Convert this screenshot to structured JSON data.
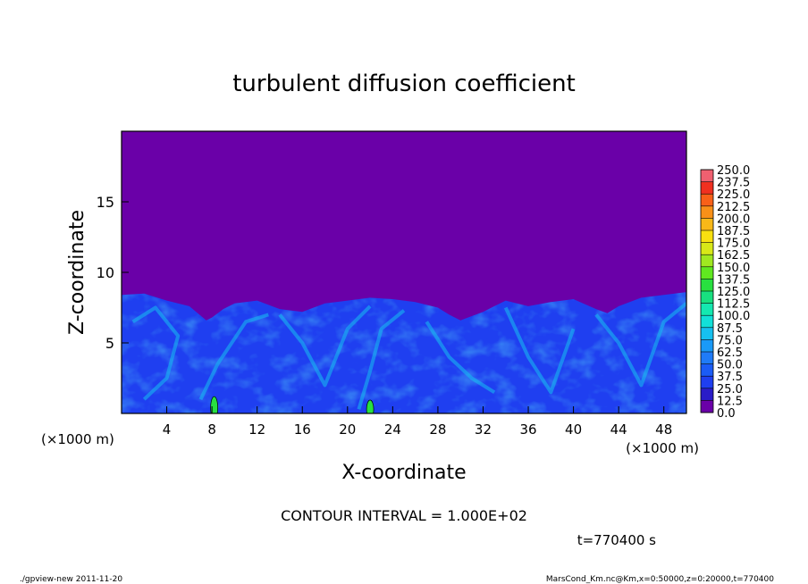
{
  "chart_data": {
    "type": "heatmap",
    "title": "turbulent diffusion coefficient",
    "xlabel": "X-coordinate",
    "ylabel": "Z-coordinate",
    "x_unit_left": "(×1000 m)",
    "x_unit_right": "(×1000 m)",
    "xlim": [
      0,
      50
    ],
    "ylim": [
      0,
      20
    ],
    "x_ticks": [
      4,
      8,
      12,
      16,
      20,
      24,
      28,
      32,
      36,
      40,
      44,
      48
    ],
    "y_ticks": [
      5,
      10,
      15
    ],
    "colorbar": {
      "levels": [
        0.0,
        12.5,
        25.0,
        37.5,
        50.0,
        62.5,
        75.0,
        87.5,
        100.0,
        112.5,
        125.0,
        137.5,
        150.0,
        162.5,
        175.0,
        187.5,
        200.0,
        212.5,
        225.0,
        237.5,
        250.0
      ],
      "labels": [
        "0.0",
        "12.5",
        "25.0",
        "37.5",
        "50.0",
        "62.5",
        "75.0",
        "87.5",
        "100.0",
        "112.5",
        "125.0",
        "137.5",
        "150.0",
        "162.5",
        "175.0",
        "187.5",
        "200.0",
        "212.5",
        "225.0",
        "237.5",
        "250.0"
      ],
      "colors": [
        "#6a00a8",
        "#2a1cc8",
        "#1f3ff0",
        "#1b5cf6",
        "#1f7bf8",
        "#1a9af8",
        "#16c0f0",
        "#12e0d8",
        "#14e8b0",
        "#18e080",
        "#28e040",
        "#60e820",
        "#a0e820",
        "#d8e818",
        "#f8e010",
        "#f8b818",
        "#f89018",
        "#f86018",
        "#f03020",
        "#f06070",
        "#f0a0b0"
      ]
    },
    "field_top_z_profile": [
      [
        0,
        8.4
      ],
      [
        2,
        8.5
      ],
      [
        4,
        8.0
      ],
      [
        6,
        7.6
      ],
      [
        7.5,
        6.6
      ],
      [
        8,
        6.8
      ],
      [
        9,
        7.4
      ],
      [
        10,
        7.8
      ],
      [
        12,
        8.0
      ],
      [
        14,
        7.4
      ],
      [
        16,
        7.2
      ],
      [
        18,
        7.8
      ],
      [
        20,
        8.0
      ],
      [
        22,
        8.2
      ],
      [
        24,
        8.1
      ],
      [
        26,
        7.9
      ],
      [
        28,
        7.5
      ],
      [
        29,
        7.0
      ],
      [
        30,
        6.6
      ],
      [
        31,
        6.9
      ],
      [
        32,
        7.2
      ],
      [
        33,
        7.6
      ],
      [
        34,
        8.0
      ],
      [
        36,
        7.6
      ],
      [
        38,
        7.9
      ],
      [
        40,
        8.1
      ],
      [
        42,
        7.4
      ],
      [
        43,
        7.1
      ],
      [
        44,
        7.6
      ],
      [
        46,
        8.2
      ],
      [
        48,
        8.4
      ],
      [
        50,
        8.6
      ]
    ],
    "background_value": 0.0,
    "contour_interval": "CONTOUR INTERVAL = 1.000E+02",
    "time_label": "t=770400 s"
  },
  "footer": {
    "left": "./gpview-new  2011-11-20",
    "right": "MarsCond_Km.nc@Km,x=0:50000,z=0:20000,t=770400"
  },
  "colors": {
    "background": "#6a00a8",
    "field_low": "#1f3ff0",
    "field_mid": "#16c0f0",
    "field_high": "#28e040"
  }
}
